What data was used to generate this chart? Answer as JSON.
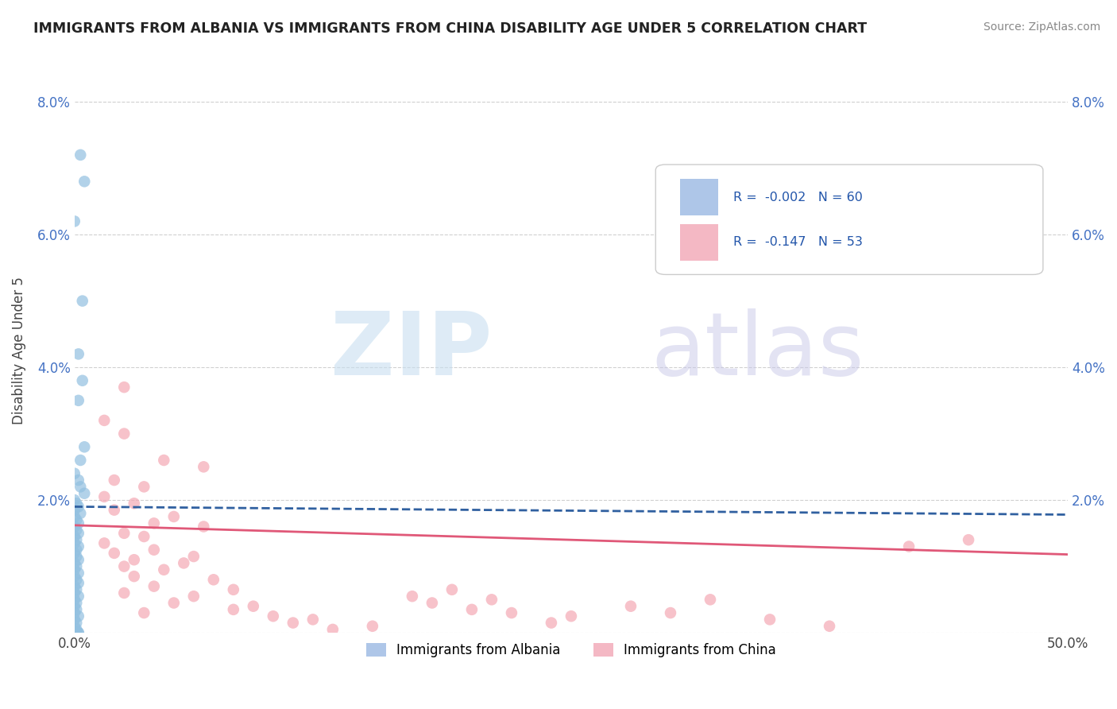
{
  "title": "IMMIGRANTS FROM ALBANIA VS IMMIGRANTS FROM CHINA DISABILITY AGE UNDER 5 CORRELATION CHART",
  "source": "Source: ZipAtlas.com",
  "ylabel": "Disability Age Under 5",
  "xlim": [
    0.0,
    50.0
  ],
  "ylim": [
    0.0,
    8.5
  ],
  "albania_color": "#92c0e0",
  "china_color": "#f4a8b4",
  "albania_trend_color": "#3060a0",
  "china_trend_color": "#e05878",
  "albania_trend_style": "--",
  "china_trend_style": "-",
  "grid_color": "#d0d0d0",
  "albania_scatter": [
    [
      0.3,
      7.2
    ],
    [
      0.5,
      6.8
    ],
    [
      0.0,
      6.2
    ],
    [
      0.4,
      5.0
    ],
    [
      0.2,
      4.2
    ],
    [
      0.4,
      3.8
    ],
    [
      0.2,
      3.5
    ],
    [
      0.5,
      2.8
    ],
    [
      0.3,
      2.6
    ],
    [
      0.0,
      2.4
    ],
    [
      0.2,
      2.3
    ],
    [
      0.3,
      2.2
    ],
    [
      0.5,
      2.1
    ],
    [
      0.0,
      2.0
    ],
    [
      0.1,
      1.95
    ],
    [
      0.2,
      1.9
    ],
    [
      0.0,
      1.85
    ],
    [
      0.3,
      1.8
    ],
    [
      0.0,
      1.75
    ],
    [
      0.1,
      1.7
    ],
    [
      0.2,
      1.65
    ],
    [
      0.0,
      1.6
    ],
    [
      0.1,
      1.55
    ],
    [
      0.2,
      1.5
    ],
    [
      0.0,
      1.45
    ],
    [
      0.1,
      1.4
    ],
    [
      0.0,
      1.35
    ],
    [
      0.2,
      1.3
    ],
    [
      0.1,
      1.25
    ],
    [
      0.0,
      1.2
    ],
    [
      0.1,
      1.15
    ],
    [
      0.2,
      1.1
    ],
    [
      0.0,
      1.05
    ],
    [
      0.1,
      1.0
    ],
    [
      0.0,
      0.95
    ],
    [
      0.2,
      0.9
    ],
    [
      0.0,
      0.85
    ],
    [
      0.1,
      0.8
    ],
    [
      0.2,
      0.75
    ],
    [
      0.0,
      0.7
    ],
    [
      0.1,
      0.65
    ],
    [
      0.0,
      0.6
    ],
    [
      0.2,
      0.55
    ],
    [
      0.0,
      0.5
    ],
    [
      0.1,
      0.45
    ],
    [
      0.0,
      0.4
    ],
    [
      0.1,
      0.35
    ],
    [
      0.0,
      0.3
    ],
    [
      0.2,
      0.25
    ],
    [
      0.0,
      0.2
    ],
    [
      0.1,
      0.15
    ],
    [
      0.0,
      0.1
    ],
    [
      0.1,
      0.05
    ],
    [
      0.0,
      0.02
    ],
    [
      0.2,
      0.0
    ],
    [
      0.0,
      0.0
    ],
    [
      0.1,
      0.0
    ],
    [
      0.0,
      0.0
    ],
    [
      0.2,
      0.0
    ],
    [
      0.1,
      0.0
    ],
    [
      0.0,
      0.0
    ]
  ],
  "china_scatter": [
    [
      2.5,
      3.7
    ],
    [
      1.5,
      3.2
    ],
    [
      2.5,
      3.0
    ],
    [
      4.5,
      2.6
    ],
    [
      6.5,
      2.5
    ],
    [
      2.0,
      2.3
    ],
    [
      3.5,
      2.2
    ],
    [
      1.5,
      2.05
    ],
    [
      3.0,
      1.95
    ],
    [
      2.0,
      1.85
    ],
    [
      5.0,
      1.75
    ],
    [
      4.0,
      1.65
    ],
    [
      6.5,
      1.6
    ],
    [
      2.5,
      1.5
    ],
    [
      3.5,
      1.45
    ],
    [
      1.5,
      1.35
    ],
    [
      4.0,
      1.25
    ],
    [
      2.0,
      1.2
    ],
    [
      6.0,
      1.15
    ],
    [
      3.0,
      1.1
    ],
    [
      5.5,
      1.05
    ],
    [
      2.5,
      1.0
    ],
    [
      4.5,
      0.95
    ],
    [
      3.0,
      0.85
    ],
    [
      7.0,
      0.8
    ],
    [
      4.0,
      0.7
    ],
    [
      8.0,
      0.65
    ],
    [
      2.5,
      0.6
    ],
    [
      6.0,
      0.55
    ],
    [
      5.0,
      0.45
    ],
    [
      9.0,
      0.4
    ],
    [
      8.0,
      0.35
    ],
    [
      3.5,
      0.3
    ],
    [
      10.0,
      0.25
    ],
    [
      12.0,
      0.2
    ],
    [
      11.0,
      0.15
    ],
    [
      15.0,
      0.1
    ],
    [
      13.0,
      0.05
    ],
    [
      17.0,
      0.55
    ],
    [
      18.0,
      0.45
    ],
    [
      20.0,
      0.35
    ],
    [
      22.0,
      0.3
    ],
    [
      19.0,
      0.65
    ],
    [
      21.0,
      0.5
    ],
    [
      25.0,
      0.25
    ],
    [
      24.0,
      0.15
    ],
    [
      28.0,
      0.4
    ],
    [
      30.0,
      0.3
    ],
    [
      32.0,
      0.5
    ],
    [
      35.0,
      0.2
    ],
    [
      38.0,
      0.1
    ],
    [
      42.0,
      1.3
    ],
    [
      45.0,
      1.4
    ]
  ],
  "alb_trend_x": [
    0,
    50
  ],
  "alb_trend_y": [
    1.9,
    1.78
  ],
  "chi_trend_x": [
    0,
    50
  ],
  "chi_trend_y": [
    1.62,
    1.18
  ]
}
